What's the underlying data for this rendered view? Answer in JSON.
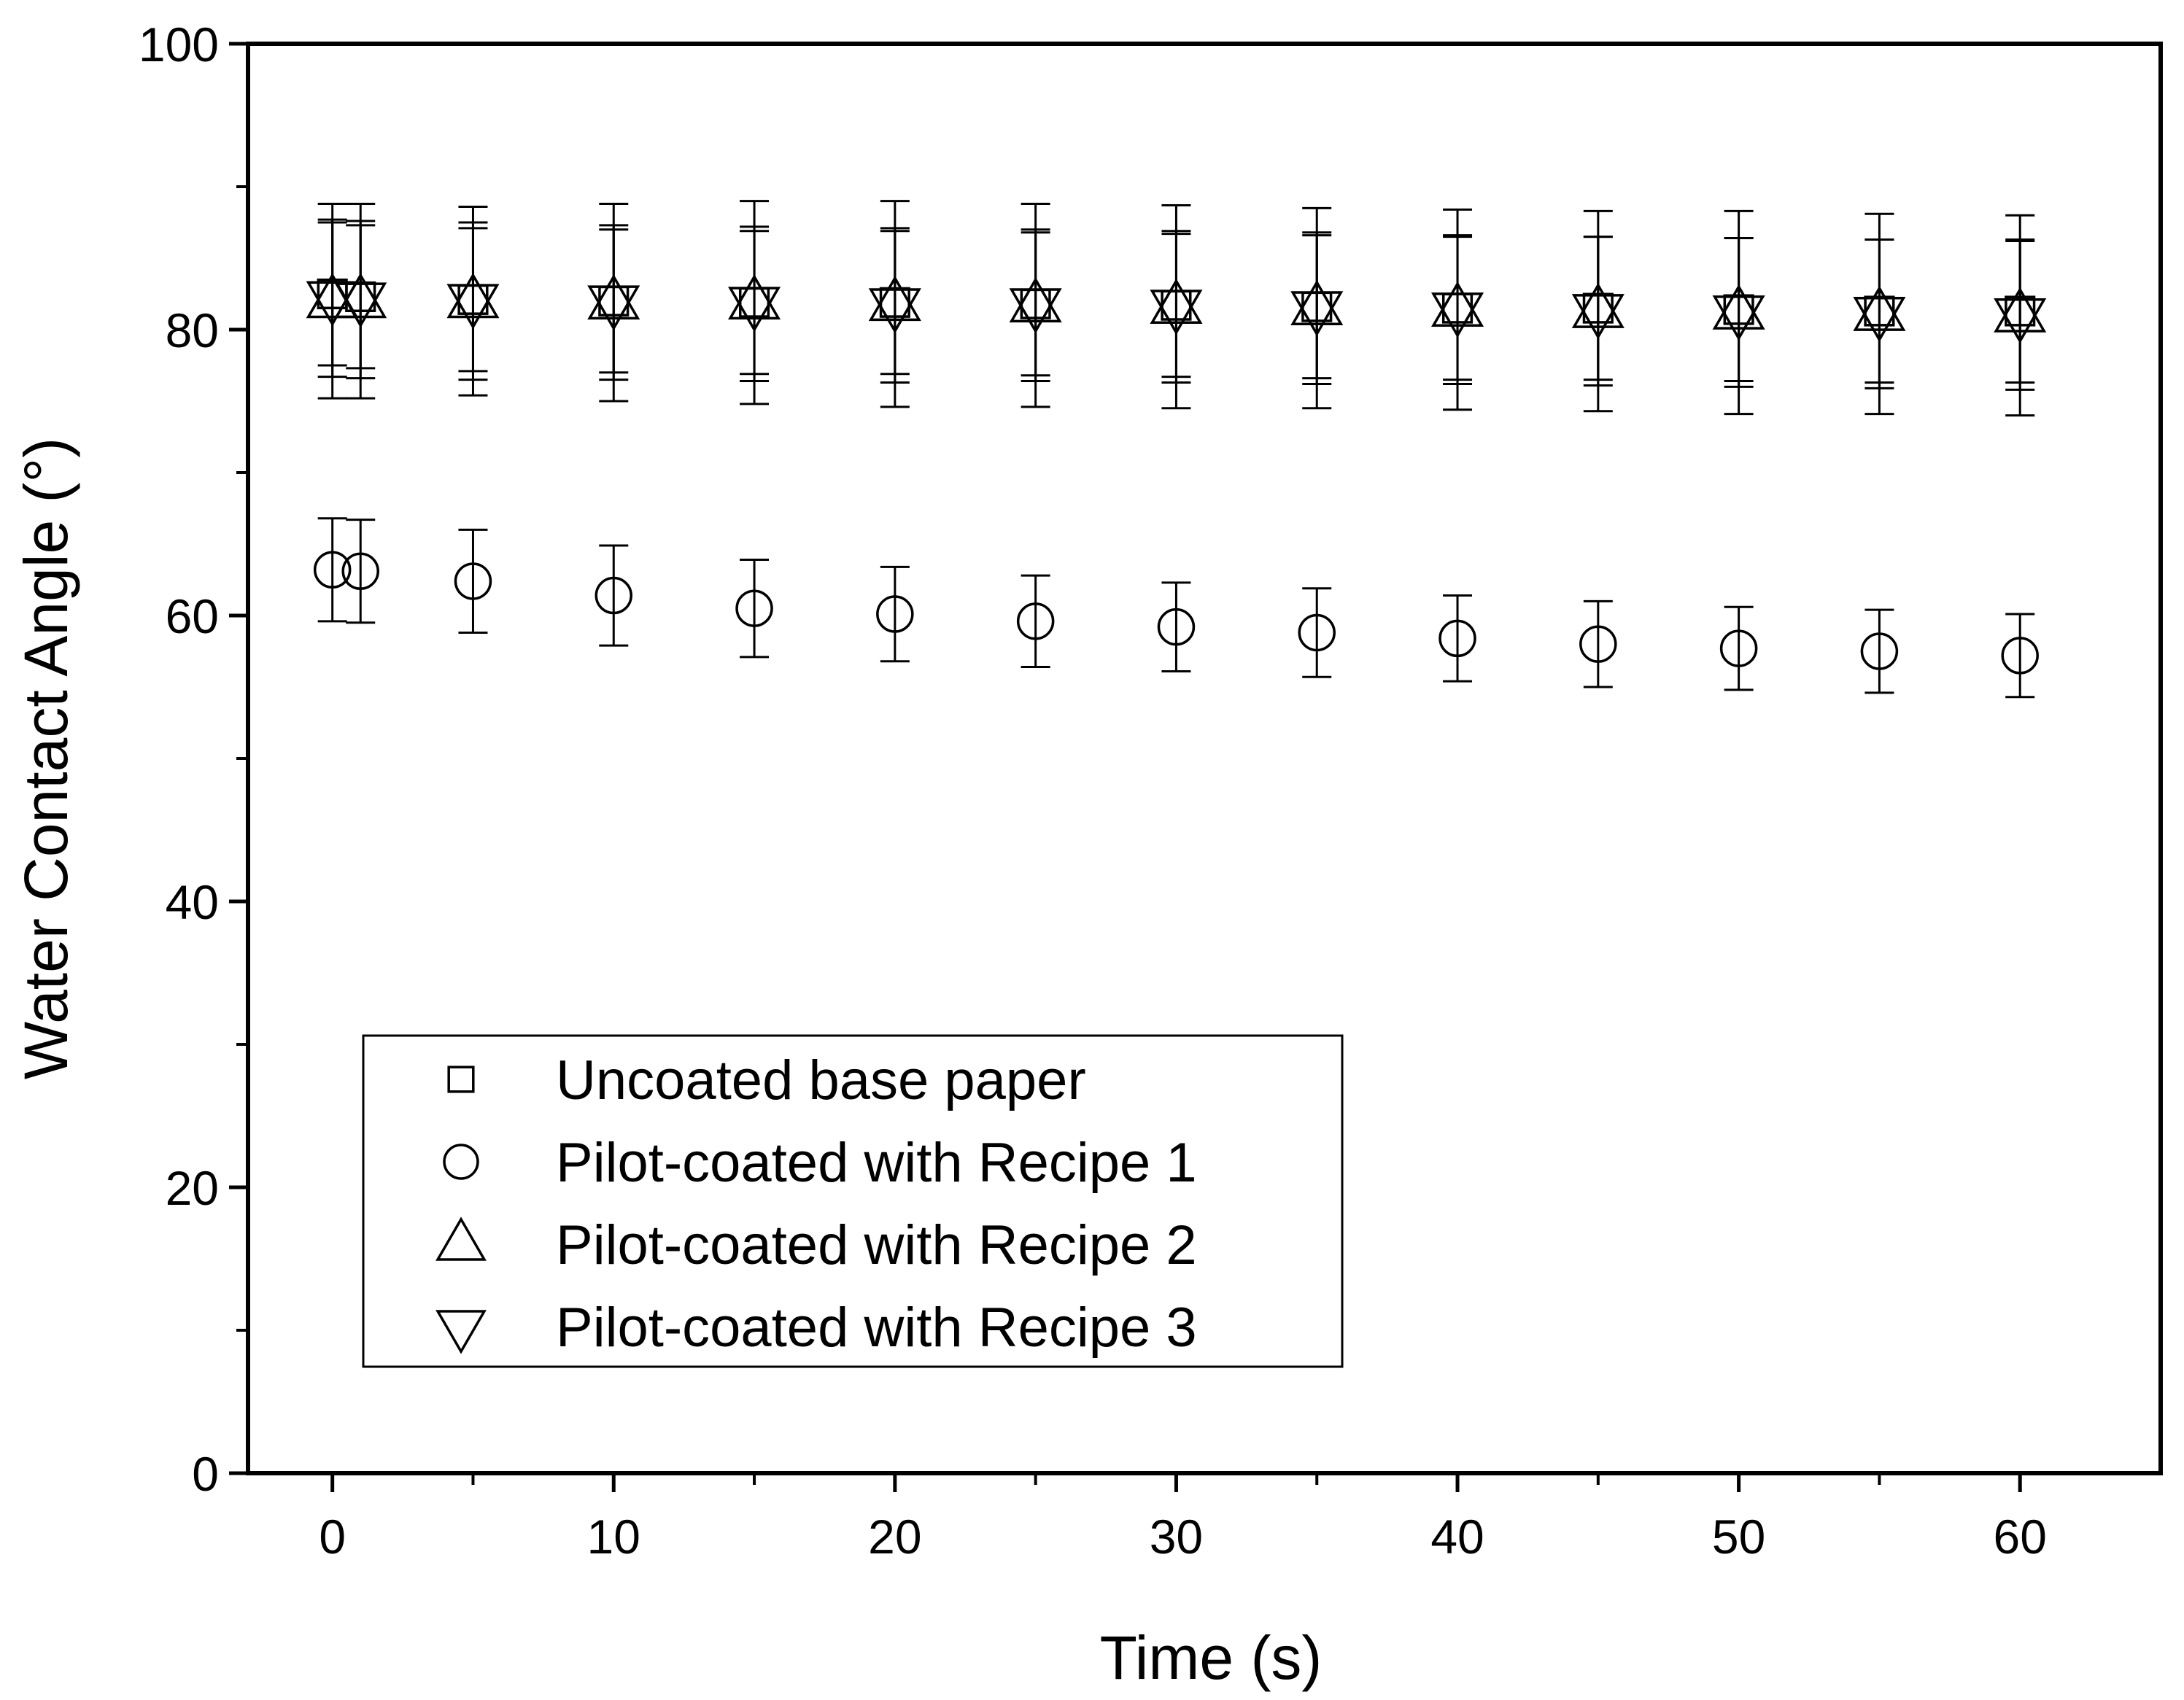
{
  "chart_data": {
    "type": "scatter",
    "title": "",
    "xlabel": "Time (s)",
    "ylabel": "Water Contact Angle (°)",
    "xlim": [
      -3,
      65
    ],
    "ylim": [
      0,
      100
    ],
    "x_ticks": [
      0,
      10,
      20,
      30,
      40,
      50,
      60
    ],
    "y_ticks": [
      0,
      20,
      40,
      60,
      80,
      100
    ],
    "x_minor_ticks": [
      5,
      15,
      25,
      35,
      45,
      55
    ],
    "y_minor_ticks": [
      10,
      30,
      50,
      70,
      90
    ],
    "legend_position": "lower-left",
    "error_bars": true,
    "series": [
      {
        "name": "Uncoated base paper",
        "marker": "square",
        "x": [
          0,
          1,
          5,
          10,
          15,
          20,
          25,
          30,
          35,
          40,
          45,
          50,
          55,
          60
        ],
        "y": [
          82.5,
          82.3,
          82.1,
          82.0,
          81.9,
          81.9,
          81.8,
          81.7,
          81.6,
          81.5,
          81.5,
          81.4,
          81.3,
          81.3
        ],
        "error": [
          5.0,
          5.0,
          5.0,
          5.0,
          5.0,
          5.0,
          5.0,
          5.0,
          5.0,
          5.0,
          5.0,
          5.0,
          5.0,
          5.0
        ]
      },
      {
        "name": "Pilot-coated with Recipe 1",
        "marker": "circle",
        "x": [
          0,
          1,
          5,
          10,
          15,
          20,
          25,
          30,
          35,
          40,
          45,
          50,
          55,
          60
        ],
        "y": [
          63.2,
          63.1,
          62.4,
          61.4,
          60.5,
          60.1,
          59.6,
          59.2,
          58.8,
          58.4,
          58.0,
          57.7,
          57.5,
          57.2
        ],
        "error": [
          3.6,
          3.6,
          3.6,
          3.5,
          3.4,
          3.3,
          3.2,
          3.1,
          3.1,
          3.0,
          3.0,
          2.9,
          2.9,
          2.9
        ]
      },
      {
        "name": "Pilot-coated with Recipe 2",
        "marker": "triangle-up",
        "x": [
          0,
          1,
          5,
          10,
          15,
          20,
          25,
          30,
          35,
          40,
          45,
          50,
          55,
          60
        ],
        "y": [
          82.0,
          82.0,
          82.0,
          81.9,
          81.9,
          81.8,
          81.7,
          81.6,
          81.5,
          81.4,
          81.3,
          81.2,
          81.1,
          81.0
        ],
        "error": [
          6.8,
          6.8,
          6.6,
          6.9,
          7.1,
          7.2,
          7.1,
          7.1,
          7.0,
          7.0,
          7.0,
          7.1,
          7.0,
          7.0
        ]
      },
      {
        "name": "Pilot-coated with Recipe 3",
        "marker": "triangle-down",
        "x": [
          0,
          1,
          5,
          10,
          15,
          20,
          25,
          30,
          35,
          40,
          45,
          50,
          55,
          60
        ],
        "y": [
          82.2,
          82.1,
          82.0,
          81.9,
          81.8,
          81.7,
          81.7,
          81.6,
          81.5,
          81.4,
          81.3,
          81.2,
          81.1,
          81.0
        ],
        "error": [
          5.5,
          5.5,
          5.5,
          5.4,
          5.4,
          5.4,
          5.3,
          5.3,
          5.3,
          5.2,
          5.2,
          5.2,
          5.2,
          5.2
        ]
      }
    ]
  }
}
